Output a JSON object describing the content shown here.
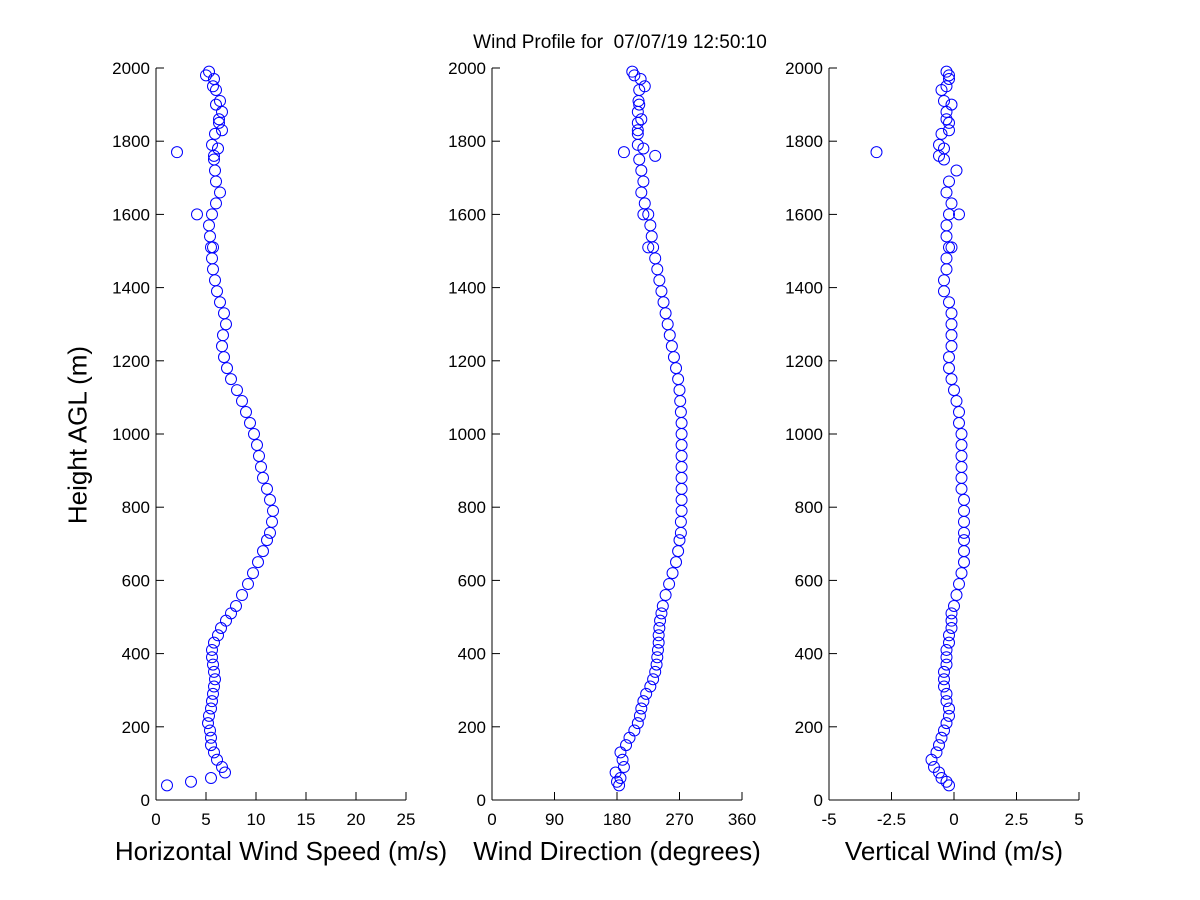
{
  "figure_title": "Wind Profile for  07/07/19 12:50:10",
  "marker_color": "#0000ff",
  "chart_data": [
    {
      "type": "scatter",
      "xlabel": "Horizontal Wind Speed (m/s)",
      "ylabel": "Height AGL (m)",
      "xlim": [
        0,
        25
      ],
      "ylim": [
        0,
        2000
      ],
      "xticks": [
        0,
        5,
        10,
        15,
        20,
        25
      ],
      "xtick_labels": [
        "0",
        "5",
        "10",
        "15",
        "20",
        "25"
      ],
      "yticks": [
        0,
        200,
        400,
        600,
        800,
        1000,
        1200,
        1400,
        1600,
        1800,
        2000
      ],
      "ytick_labels": [
        "0",
        "200",
        "400",
        "600",
        "800",
        "1000",
        "1200",
        "1400",
        "1600",
        "1800",
        "2000"
      ],
      "marker": "open-circle",
      "grid": false,
      "x": [
        1.1,
        3.5,
        5.5,
        6.9,
        6.6,
        6.1,
        5.8,
        5.5,
        5.5,
        5.4,
        5.2,
        5.3,
        5.5,
        5.6,
        5.7,
        5.8,
        5.9,
        5.8,
        5.7,
        5.6,
        5.6,
        5.8,
        6.2,
        6.5,
        7.0,
        7.5,
        8.0,
        8.6,
        9.2,
        9.7,
        10.2,
        10.7,
        11.1,
        11.4,
        11.6,
        11.7,
        11.4,
        11.1,
        10.7,
        10.5,
        10.3,
        10.1,
        9.8,
        9.4,
        9.0,
        8.6,
        8.1,
        7.5,
        7.1,
        6.8,
        6.6,
        6.7,
        7.0,
        6.8,
        6.4,
        6.1,
        5.9,
        5.7,
        5.6,
        5.5,
        5.4,
        5.3,
        5.6,
        6.0,
        6.4,
        6.0,
        5.9,
        5.8,
        5.6,
        5.9,
        6.3,
        6.6,
        6.4,
        6.0,
        5.8,
        5.3,
        5.0,
        5.7,
        6.0,
        6.3,
        6.6,
        6.2,
        5.8,
        2.1,
        4.1,
        5.7
      ],
      "y": [
        40,
        50,
        60,
        75,
        90,
        110,
        130,
        150,
        170,
        190,
        210,
        230,
        250,
        270,
        290,
        310,
        330,
        350,
        370,
        390,
        410,
        430,
        450,
        470,
        490,
        510,
        530,
        560,
        590,
        620,
        650,
        680,
        710,
        730,
        760,
        790,
        820,
        850,
        880,
        910,
        940,
        970,
        1000,
        1030,
        1060,
        1090,
        1120,
        1150,
        1180,
        1210,
        1240,
        1270,
        1300,
        1330,
        1360,
        1390,
        1420,
        1450,
        1480,
        1510,
        1540,
        1570,
        1600,
        1630,
        1660,
        1690,
        1720,
        1750,
        1790,
        1820,
        1850,
        1880,
        1910,
        1940,
        1970,
        1990,
        1980,
        1950,
        1900,
        1860,
        1830,
        1780,
        1760,
        1770,
        1600,
        1510
      ]
    },
    {
      "type": "scatter",
      "xlabel": "Wind Direction (degrees)",
      "ylabel": "",
      "xlim": [
        0,
        360
      ],
      "ylim": [
        0,
        2000
      ],
      "xticks": [
        0,
        90,
        180,
        270,
        360
      ],
      "xtick_labels": [
        "0",
        "90",
        "180",
        "270",
        "360"
      ],
      "yticks": [
        0,
        200,
        400,
        600,
        800,
        1000,
        1200,
        1400,
        1600,
        1800,
        2000
      ],
      "ytick_labels": [
        "0",
        "200",
        "400",
        "600",
        "800",
        "1000",
        "1200",
        "1400",
        "1600",
        "1800",
        "2000"
      ],
      "marker": "open-circle",
      "grid": false,
      "x": [
        183,
        180,
        185,
        178,
        190,
        188,
        185,
        193,
        198,
        205,
        210,
        213,
        215,
        218,
        222,
        228,
        232,
        235,
        237,
        238,
        239,
        240,
        240,
        241,
        242,
        244,
        246,
        250,
        255,
        260,
        265,
        268,
        270,
        272,
        272,
        273,
        273,
        273,
        273,
        273,
        273,
        273,
        273,
        273,
        272,
        271,
        270,
        268,
        265,
        262,
        259,
        256,
        253,
        250,
        247,
        244,
        241,
        238,
        235,
        232,
        230,
        228,
        225,
        220,
        215,
        218,
        215,
        212,
        210,
        210,
        210,
        210,
        211,
        212,
        214,
        202,
        205,
        220,
        212,
        215,
        210,
        218,
        235,
        190,
        218,
        225
      ],
      "y": [
        40,
        50,
        60,
        75,
        90,
        110,
        130,
        150,
        170,
        190,
        210,
        230,
        250,
        270,
        290,
        310,
        330,
        350,
        370,
        390,
        410,
        430,
        450,
        470,
        490,
        510,
        530,
        560,
        590,
        620,
        650,
        680,
        710,
        730,
        760,
        790,
        820,
        850,
        880,
        910,
        940,
        970,
        1000,
        1030,
        1060,
        1090,
        1120,
        1150,
        1180,
        1210,
        1240,
        1270,
        1300,
        1330,
        1360,
        1390,
        1420,
        1450,
        1480,
        1510,
        1540,
        1570,
        1600,
        1630,
        1660,
        1690,
        1720,
        1750,
        1790,
        1820,
        1850,
        1880,
        1910,
        1940,
        1970,
        1990,
        1980,
        1950,
        1900,
        1860,
        1830,
        1780,
        1760,
        1770,
        1600,
        1510
      ]
    },
    {
      "type": "scatter",
      "xlabel": "Vertical Wind (m/s)",
      "ylabel": "",
      "xlim": [
        -5,
        5
      ],
      "ylim": [
        0,
        2000
      ],
      "xticks": [
        -5,
        -2.5,
        0,
        2.5,
        5
      ],
      "xtick_labels": [
        "-5",
        "-2.5",
        "0",
        "2.5",
        "5"
      ],
      "yticks": [
        0,
        200,
        400,
        600,
        800,
        1000,
        1200,
        1400,
        1600,
        1800,
        2000
      ],
      "ytick_labels": [
        "0",
        "200",
        "400",
        "600",
        "800",
        "1000",
        "1200",
        "1400",
        "1600",
        "1800",
        "2000"
      ],
      "marker": "open-circle",
      "grid": false,
      "x": [
        -0.2,
        -0.3,
        -0.5,
        -0.6,
        -0.8,
        -0.9,
        -0.7,
        -0.6,
        -0.5,
        -0.4,
        -0.3,
        -0.2,
        -0.2,
        -0.3,
        -0.3,
        -0.4,
        -0.4,
        -0.4,
        -0.3,
        -0.3,
        -0.3,
        -0.2,
        -0.2,
        -0.1,
        -0.1,
        -0.1,
        0.0,
        0.1,
        0.2,
        0.3,
        0.4,
        0.4,
        0.4,
        0.4,
        0.4,
        0.4,
        0.4,
        0.3,
        0.3,
        0.3,
        0.3,
        0.3,
        0.3,
        0.2,
        0.2,
        0.1,
        0.0,
        -0.1,
        -0.2,
        -0.2,
        -0.1,
        -0.1,
        -0.1,
        -0.1,
        -0.2,
        -0.4,
        -0.4,
        -0.3,
        -0.3,
        -0.2,
        -0.3,
        -0.3,
        -0.2,
        -0.1,
        -0.3,
        -0.2,
        0.1,
        -0.4,
        -0.6,
        -0.5,
        -0.2,
        -0.3,
        -0.4,
        -0.5,
        -0.2,
        -0.3,
        -0.2,
        -0.3,
        -0.1,
        -0.3,
        -0.2,
        -0.4,
        -0.6,
        -3.1,
        0.2,
        -0.1
      ],
      "y": [
        40,
        50,
        60,
        75,
        90,
        110,
        130,
        150,
        170,
        190,
        210,
        230,
        250,
        270,
        290,
        310,
        330,
        350,
        370,
        390,
        410,
        430,
        450,
        470,
        490,
        510,
        530,
        560,
        590,
        620,
        650,
        680,
        710,
        730,
        760,
        790,
        820,
        850,
        880,
        910,
        940,
        970,
        1000,
        1030,
        1060,
        1090,
        1120,
        1150,
        1180,
        1210,
        1240,
        1270,
        1300,
        1330,
        1360,
        1390,
        1420,
        1450,
        1480,
        1510,
        1540,
        1570,
        1600,
        1630,
        1660,
        1690,
        1720,
        1750,
        1790,
        1820,
        1850,
        1880,
        1910,
        1940,
        1970,
        1990,
        1980,
        1950,
        1900,
        1860,
        1830,
        1780,
        1760,
        1770,
        1600,
        1510
      ]
    }
  ]
}
